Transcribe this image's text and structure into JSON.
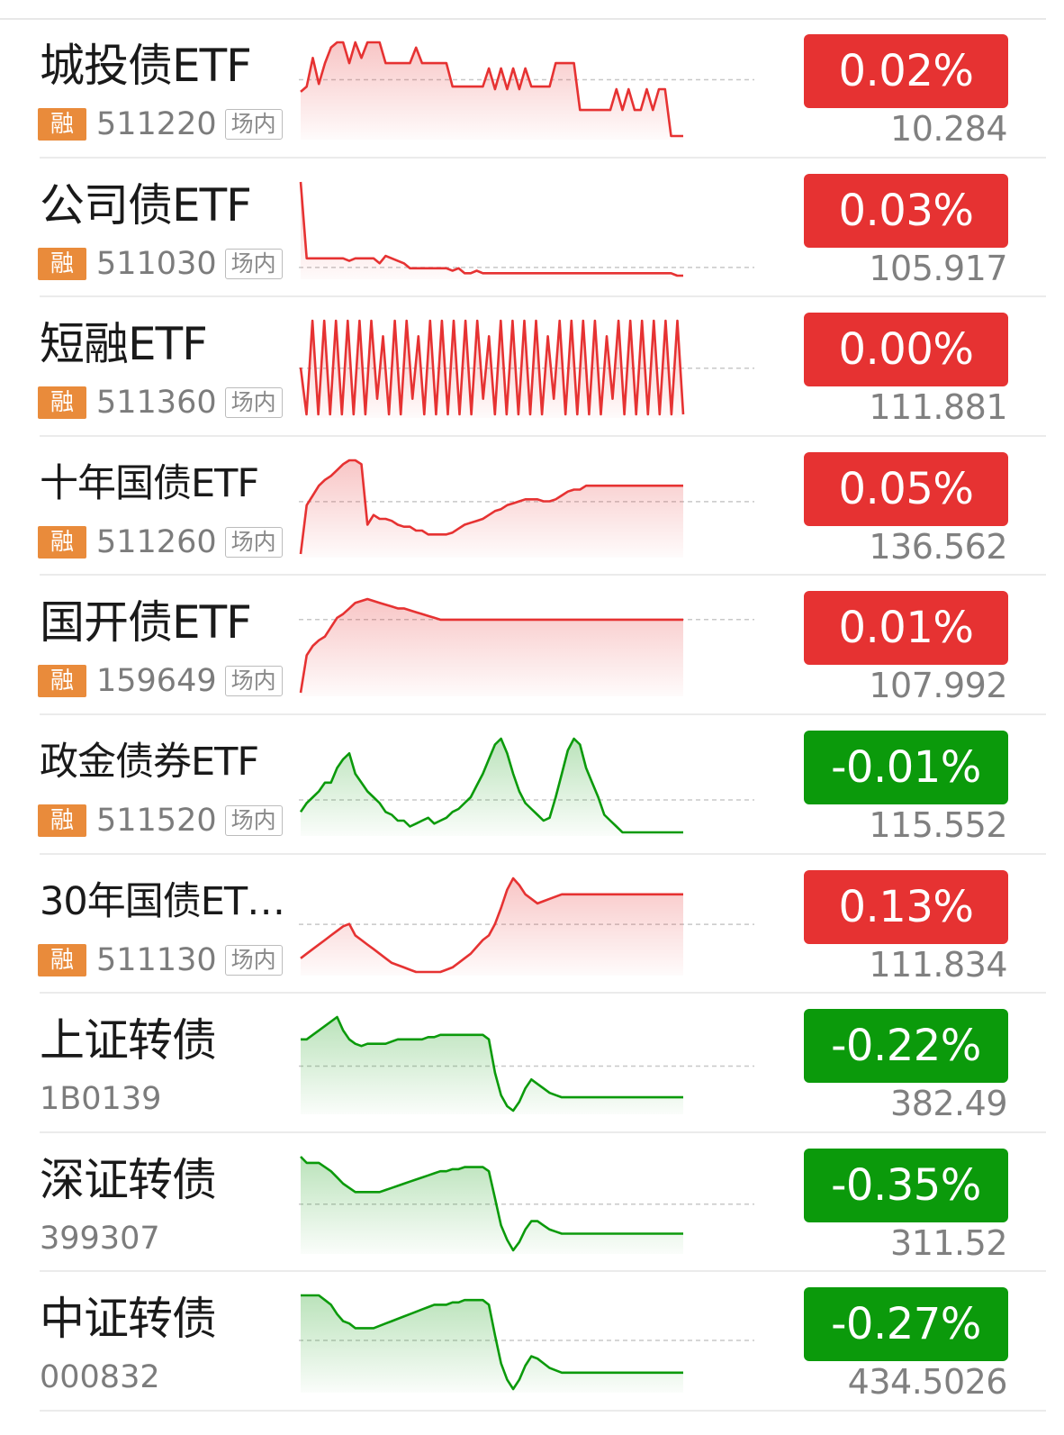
{
  "colors": {
    "up": "#e63232",
    "down": "#0b9a0b",
    "badge": "#e98b3b"
  },
  "rows": [
    {
      "name": "城投债ETF",
      "rong": "融",
      "code": "511220",
      "market": "场内",
      "change": "0.02%",
      "direction": "up",
      "price": "10.284",
      "spark": [
        60,
        62,
        73,
        63,
        71,
        77,
        79,
        79,
        71,
        79,
        73,
        79,
        79,
        79,
        71,
        71,
        71,
        71,
        71,
        77,
        71,
        71,
        71,
        71,
        71,
        62,
        62,
        62,
        62,
        62,
        62,
        69,
        61,
        69,
        61,
        69,
        61,
        69,
        62,
        62,
        62,
        62,
        71,
        71,
        71,
        71,
        53,
        53,
        53,
        53,
        53,
        53,
        61,
        53,
        61,
        53,
        53,
        61,
        53,
        61,
        61,
        43,
        43,
        43
      ]
    },
    {
      "name": "公司债ETF",
      "rong": "融",
      "code": "511030",
      "market": "场内",
      "change": "0.03%",
      "direction": "up",
      "price": "105.917",
      "spark": [
        45,
        14,
        14,
        14,
        14,
        14,
        14,
        14,
        13,
        14,
        14,
        14,
        14,
        12,
        15,
        14,
        13,
        12,
        10,
        10,
        10,
        10,
        10,
        10,
        10,
        9,
        10,
        8,
        8,
        9,
        8,
        8,
        8,
        8,
        8,
        8,
        8,
        8,
        8,
        8,
        8,
        8,
        8,
        8,
        8,
        8,
        8,
        8,
        8,
        8,
        8,
        8,
        8,
        8,
        8,
        8,
        8,
        8,
        8,
        8,
        8,
        8,
        7,
        7
      ]
    },
    {
      "name": "短融ETF",
      "rong": "融",
      "code": "511360",
      "market": "场内",
      "change": "0.00%",
      "direction": "up",
      "price": "111.881",
      "spark": [
        45,
        42,
        48,
        42,
        48,
        42,
        48,
        42,
        48,
        42,
        48,
        42,
        48,
        43,
        47,
        42,
        48,
        42,
        48,
        43,
        47,
        42,
        48,
        42,
        48,
        42,
        48,
        42,
        48,
        42,
        48,
        43,
        47,
        42,
        48,
        42,
        48,
        42,
        48,
        42,
        48,
        42,
        47,
        43,
        48,
        42,
        48,
        42,
        48,
        42,
        48,
        42,
        47,
        43,
        48,
        42,
        48,
        42,
        48,
        42,
        48,
        42,
        48,
        42,
        48,
        42
      ]
    },
    {
      "name": "十年国债ETF",
      "rong": "融",
      "code": "511260",
      "market": "场内",
      "change": "0.05%",
      "direction": "up",
      "price": "136.562",
      "spark": [
        40,
        65,
        70,
        75,
        78,
        80,
        83,
        86,
        88,
        88,
        86,
        55,
        60,
        58,
        58,
        57,
        55,
        54,
        54,
        52,
        52,
        50,
        50,
        50,
        50,
        51,
        53,
        55,
        56,
        57,
        58,
        60,
        62,
        63,
        65,
        66,
        67,
        68,
        68,
        68,
        67,
        67,
        68,
        70,
        72,
        73,
        73,
        75,
        75,
        75,
        75,
        75,
        75,
        75,
        75,
        75,
        75,
        75,
        75,
        75,
        75,
        75,
        75,
        75
      ]
    },
    {
      "name": "国开债ETF",
      "rong": "融",
      "code": "159649",
      "market": "场内",
      "change": "0.01%",
      "direction": "up",
      "price": "107.992",
      "spark": [
        30,
        50,
        55,
        58,
        60,
        65,
        70,
        72,
        75,
        78,
        79,
        80,
        79,
        78,
        77,
        76,
        75,
        75,
        74,
        73,
        72,
        71,
        70,
        69,
        69,
        69,
        69,
        69,
        69,
        69,
        69,
        69,
        69,
        69,
        69,
        69,
        69,
        69,
        69,
        69,
        69,
        69,
        69,
        69,
        69,
        69,
        69,
        69,
        69,
        69,
        69,
        69,
        69,
        69,
        69,
        69,
        69,
        69,
        69,
        69,
        69,
        69,
        69,
        69
      ]
    },
    {
      "name": "政金债券ETF",
      "rong": "融",
      "code": "511520",
      "market": "场内",
      "change": "-0.01%",
      "direction": "down",
      "price": "115.552",
      "spark": [
        15,
        18,
        20,
        22,
        25,
        25,
        30,
        33,
        35,
        28,
        25,
        22,
        20,
        18,
        15,
        14,
        12,
        12,
        10,
        11,
        12,
        13,
        11,
        12,
        13,
        15,
        16,
        18,
        20,
        24,
        28,
        33,
        38,
        40,
        35,
        28,
        22,
        18,
        16,
        14,
        12,
        13,
        20,
        28,
        36,
        40,
        38,
        30,
        25,
        20,
        14,
        12,
        10,
        8,
        8,
        8,
        8,
        8,
        8,
        8,
        8,
        8,
        8,
        8
      ]
    },
    {
      "name": "30年国债ET…",
      "rong": "融",
      "code": "511130",
      "market": "场内",
      "change": "0.13%",
      "direction": "up",
      "price": "111.834",
      "spark": [
        20,
        22,
        24,
        26,
        28,
        30,
        32,
        34,
        35,
        30,
        28,
        26,
        24,
        22,
        20,
        18,
        17,
        16,
        15,
        14,
        14,
        14,
        14,
        14,
        15,
        16,
        18,
        20,
        22,
        25,
        28,
        30,
        35,
        42,
        50,
        55,
        52,
        48,
        46,
        44,
        45,
        46,
        47,
        48,
        48,
        48,
        48,
        48,
        48,
        48,
        48,
        48,
        48,
        48,
        48,
        48,
        48,
        48,
        48,
        48,
        48,
        48,
        48,
        48
      ]
    },
    {
      "name": "上证转债",
      "rong": "",
      "code": "1B0139",
      "market": "",
      "change": "-0.22%",
      "direction": "down",
      "price": "382.49",
      "spark": [
        70,
        70,
        72,
        74,
        76,
        78,
        80,
        74,
        70,
        68,
        67,
        68,
        68,
        68,
        68,
        69,
        70,
        70,
        70,
        70,
        70,
        71,
        71,
        72,
        72,
        72,
        72,
        72,
        72,
        72,
        72,
        70,
        55,
        45,
        40,
        38,
        42,
        48,
        52,
        50,
        48,
        46,
        45,
        44,
        44,
        44,
        44,
        44,
        44,
        44,
        44,
        44,
        44,
        44,
        44,
        44,
        44,
        44,
        44,
        44,
        44,
        44,
        44,
        44
      ]
    },
    {
      "name": "深证转债",
      "rong": "",
      "code": "399307",
      "market": "",
      "change": "-0.35%",
      "direction": "down",
      "price": "311.52",
      "spark": [
        75,
        72,
        72,
        72,
        70,
        68,
        65,
        62,
        60,
        58,
        58,
        58,
        58,
        58,
        59,
        60,
        61,
        62,
        63,
        64,
        65,
        66,
        67,
        68,
        68,
        69,
        69,
        70,
        70,
        70,
        70,
        68,
        55,
        42,
        35,
        30,
        34,
        40,
        44,
        44,
        42,
        40,
        39,
        38,
        38,
        38,
        38,
        38,
        38,
        38,
        38,
        38,
        38,
        38,
        38,
        38,
        38,
        38,
        38,
        38,
        38,
        38,
        38,
        38
      ]
    },
    {
      "name": "中证转债",
      "rong": "",
      "code": "000832",
      "market": "",
      "change": "-0.27%",
      "direction": "down",
      "price": "434.5026",
      "spark": [
        72,
        72,
        72,
        72,
        70,
        68,
        64,
        61,
        60,
        58,
        58,
        58,
        58,
        59,
        60,
        61,
        62,
        63,
        64,
        65,
        66,
        67,
        68,
        68,
        68,
        69,
        69,
        70,
        70,
        70,
        70,
        68,
        55,
        43,
        36,
        32,
        36,
        42,
        46,
        45,
        43,
        41,
        40,
        39,
        39,
        39,
        39,
        39,
        39,
        39,
        39,
        39,
        39,
        39,
        39,
        39,
        39,
        39,
        39,
        39,
        39,
        39,
        39,
        39
      ]
    }
  ]
}
